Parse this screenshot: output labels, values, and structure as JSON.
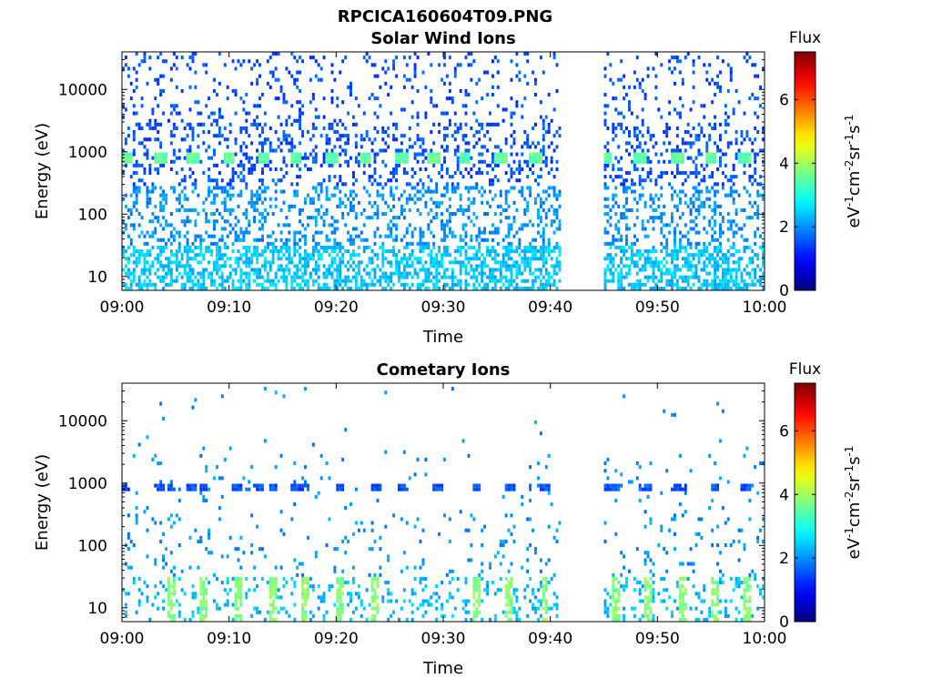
{
  "figure_title": "RPCICA160604T09.PNG",
  "chart_data": [
    {
      "type": "heatmap",
      "title": "Solar Wind Ions",
      "xlabel": "Time",
      "ylabel": "Energy (eV)",
      "x_range": [
        "09:00",
        "10:00"
      ],
      "x_ticks": [
        "09:00",
        "09:10",
        "09:20",
        "09:30",
        "09:40",
        "09:50",
        "10:00"
      ],
      "y_scale": "log",
      "ylim": [
        6,
        40000
      ],
      "y_ticks": [
        10,
        100,
        1000,
        10000
      ],
      "y_tick_labels": [
        "10",
        "100",
        "1000",
        "10000"
      ],
      "data_gap": [
        "09:41",
        "09:45"
      ],
      "colorbar": {
        "title": "Flux",
        "label": "eV-1cm-2sr-1s-1",
        "range": [
          0,
          7.5
        ],
        "ticks": [
          "0",
          "2",
          "4",
          "6"
        ],
        "colormap": "jet"
      },
      "features": {
        "periodic_peak_energy_eV": 800,
        "peak_flux_level": 3.5,
        "peak_times_min": [
          0.5,
          3.6,
          6.6,
          10.0,
          13.3,
          16.2,
          19.6,
          22.8,
          26.1,
          29.1,
          32.0,
          35.4,
          38.6,
          45.2,
          48.4,
          51.9,
          55.0,
          58.1
        ],
        "background_flux_level": 1.5
      }
    },
    {
      "type": "heatmap",
      "title": "Cometary Ions",
      "xlabel": "Time",
      "ylabel": "Energy (eV)",
      "x_range": [
        "09:00",
        "10:00"
      ],
      "x_ticks": [
        "09:00",
        "09:10",
        "09:20",
        "09:30",
        "09:40",
        "09:50",
        "10:00"
      ],
      "y_scale": "log",
      "ylim": [
        6,
        40000
      ],
      "y_ticks": [
        10,
        100,
        1000,
        10000
      ],
      "y_tick_labels": [
        "10",
        "100",
        "1000",
        "10000"
      ],
      "data_gap": [
        "09:41",
        "09:45"
      ],
      "colorbar": {
        "title": "Flux",
        "label": "eV-1cm-2sr-1s-1",
        "range": [
          0,
          7.5
        ],
        "ticks": [
          "0",
          "2",
          "4",
          "6"
        ],
        "colormap": "jet"
      },
      "features": {
        "periodic_peak_energy_eV": 800,
        "peak_flux_level": 1.5,
        "low_energy_bursts_eV": [
          7,
          20
        ],
        "low_energy_burst_times_min": [
          4.6,
          7.6,
          10.8,
          14.1,
          17.1,
          20.4,
          23.7,
          33.1,
          36.2,
          39.5,
          46.2,
          49.1,
          52.3,
          55.4,
          58.3
        ],
        "low_energy_flux_level": 3.8
      }
    }
  ]
}
